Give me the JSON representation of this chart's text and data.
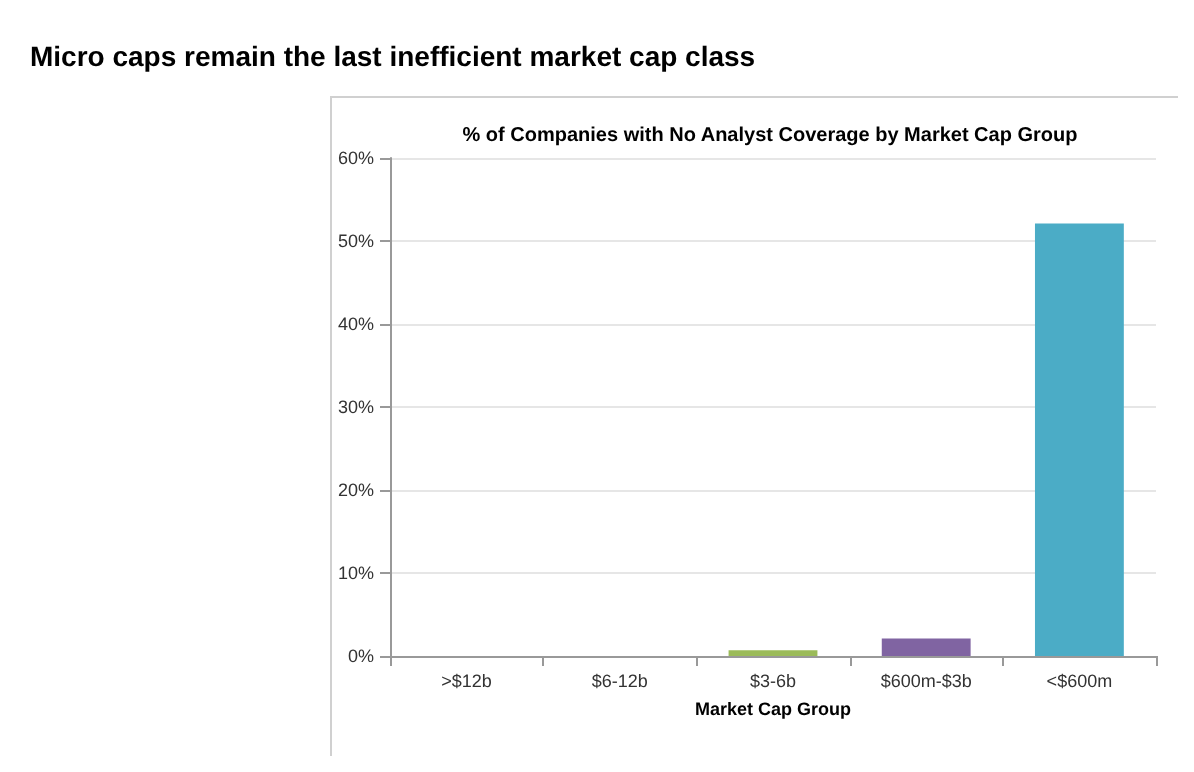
{
  "chart_data": {
    "type": "bar",
    "title": "Micro caps remain the last inefficient market cap class",
    "subtitle": "% of Companies with No Analyst Coverage by Market Cap Group",
    "xlabel": "Market Cap Group",
    "categories": [
      ">$12b",
      "$6-12b",
      "$3-6b",
      "$600m-$3b",
      "<$600m"
    ],
    "values": [
      0,
      0,
      0.7,
      2.1,
      52.1
    ],
    "colors": [
      "#4f81bd",
      "#c0504d",
      "#9bbb59",
      "#8064a2",
      "#4bacc6"
    ],
    "ylim": [
      0,
      60
    ],
    "yticks": [
      {
        "value": 0,
        "label": "0%"
      },
      {
        "value": 10,
        "label": "10%"
      },
      {
        "value": 20,
        "label": "20%"
      },
      {
        "value": 30,
        "label": "30%"
      },
      {
        "value": 40,
        "label": "40%"
      },
      {
        "value": 50,
        "label": "50%"
      },
      {
        "value": 60,
        "label": "60%"
      }
    ],
    "grid": "y"
  }
}
